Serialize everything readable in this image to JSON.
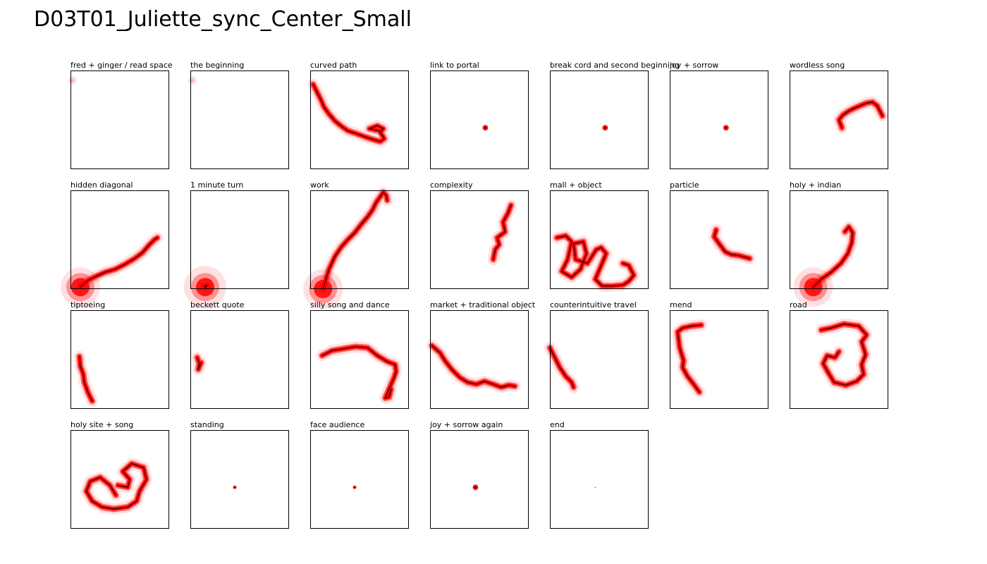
{
  "title": "D03T01_Juliette_sync_Center_Small",
  "colors": {
    "blob": "#ff0000",
    "path": "#000000",
    "frame": "#000000"
  },
  "chart_data": {
    "type": "small-multiples-trajectory",
    "panels": [
      {
        "label": "fred + ginger / read space",
        "x_range": [
          0,
          1
        ],
        "y_range": [
          0,
          1
        ],
        "points": [
          [
            0.02,
            0.9
          ]
        ],
        "blob": "faint"
      },
      {
        "label": "the beginning",
        "x_range": [
          0,
          1
        ],
        "y_range": [
          0,
          1
        ],
        "points": [
          [
            0.02,
            0.9
          ]
        ],
        "blob": "faint"
      },
      {
        "label": "curved path",
        "x_range": [
          0,
          1
        ],
        "y_range": [
          0,
          1
        ],
        "points": [
          [
            0.03,
            0.86
          ],
          [
            0.07,
            0.78
          ],
          [
            0.11,
            0.7
          ],
          [
            0.14,
            0.63
          ],
          [
            0.19,
            0.56
          ],
          [
            0.25,
            0.49
          ],
          [
            0.31,
            0.44
          ],
          [
            0.38,
            0.39
          ],
          [
            0.47,
            0.36
          ],
          [
            0.55,
            0.33
          ],
          [
            0.64,
            0.3
          ],
          [
            0.71,
            0.28
          ],
          [
            0.75,
            0.31
          ],
          [
            0.7,
            0.39
          ],
          [
            0.6,
            0.41
          ],
          [
            0.68,
            0.44
          ],
          [
            0.74,
            0.41
          ],
          [
            0.71,
            0.37
          ]
        ],
        "blob": "path"
      },
      {
        "label": "link to portal",
        "x_range": [
          0,
          1
        ],
        "y_range": [
          0,
          1
        ],
        "points": [
          [
            0.56,
            0.42
          ]
        ],
        "blob": "dot"
      },
      {
        "label": "break cord and second beginning",
        "x_range": [
          0,
          1
        ],
        "y_range": [
          0,
          1
        ],
        "points": [
          [
            0.56,
            0.42
          ]
        ],
        "blob": "dot"
      },
      {
        "label": "joy + sorrow",
        "x_range": [
          0,
          1
        ],
        "y_range": [
          0,
          1
        ],
        "points": [
          [
            0.57,
            0.42
          ]
        ],
        "blob": "dot"
      },
      {
        "label": "wordless song",
        "x_range": [
          0,
          1
        ],
        "y_range": [
          0,
          1
        ],
        "points": [
          [
            0.53,
            0.42
          ],
          [
            0.5,
            0.5
          ],
          [
            0.54,
            0.55
          ],
          [
            0.6,
            0.59
          ],
          [
            0.66,
            0.62
          ],
          [
            0.73,
            0.65
          ],
          [
            0.78,
            0.67
          ],
          [
            0.84,
            0.68
          ],
          [
            0.89,
            0.64
          ],
          [
            0.92,
            0.58
          ],
          [
            0.94,
            0.54
          ]
        ],
        "blob": "path"
      },
      {
        "label": "hidden diagonal",
        "x_range": [
          0,
          1
        ],
        "y_range": [
          0,
          1
        ],
        "points": [
          [
            0.1,
            0.02
          ],
          [
            0.18,
            0.09
          ],
          [
            0.26,
            0.13
          ],
          [
            0.35,
            0.17
          ],
          [
            0.45,
            0.2
          ],
          [
            0.55,
            0.25
          ],
          [
            0.65,
            0.31
          ],
          [
            0.73,
            0.37
          ],
          [
            0.79,
            0.44
          ],
          [
            0.85,
            0.5
          ],
          [
            0.88,
            0.52
          ]
        ],
        "blob": "path-big-start"
      },
      {
        "label": "1 minute turn",
        "x_range": [
          0,
          1
        ],
        "y_range": [
          0,
          1
        ],
        "points": [
          [
            0.15,
            0.02
          ],
          [
            0.17,
            0.04
          ],
          [
            0.14,
            0.03
          ],
          [
            0.16,
            0.01
          ]
        ],
        "blob": "big-start"
      },
      {
        "label": "work",
        "x_range": [
          0,
          1
        ],
        "y_range": [
          0,
          1
        ],
        "points": [
          [
            0.13,
            0.0
          ],
          [
            0.16,
            0.1
          ],
          [
            0.19,
            0.2
          ],
          [
            0.25,
            0.33
          ],
          [
            0.31,
            0.42
          ],
          [
            0.38,
            0.5
          ],
          [
            0.45,
            0.57
          ],
          [
            0.52,
            0.66
          ],
          [
            0.58,
            0.73
          ],
          [
            0.63,
            0.8
          ],
          [
            0.67,
            0.88
          ],
          [
            0.72,
            0.95
          ],
          [
            0.74,
            0.98
          ],
          [
            0.77,
            0.95
          ],
          [
            0.78,
            0.9
          ]
        ],
        "blob": "path-big-start"
      },
      {
        "label": "complexity",
        "x_range": [
          0,
          1
        ],
        "y_range": [
          0,
          1
        ],
        "points": [
          [
            0.64,
            0.3
          ],
          [
            0.66,
            0.4
          ],
          [
            0.7,
            0.45
          ],
          [
            0.68,
            0.52
          ],
          [
            0.76,
            0.58
          ],
          [
            0.74,
            0.68
          ],
          [
            0.79,
            0.77
          ],
          [
            0.82,
            0.85
          ]
        ],
        "blob": "path"
      },
      {
        "label": "mall + object",
        "x_range": [
          0,
          1
        ],
        "y_range": [
          0,
          1
        ],
        "points": [
          [
            0.07,
            0.52
          ],
          [
            0.16,
            0.54
          ],
          [
            0.22,
            0.48
          ],
          [
            0.18,
            0.3
          ],
          [
            0.12,
            0.18
          ],
          [
            0.22,
            0.12
          ],
          [
            0.31,
            0.2
          ],
          [
            0.37,
            0.36
          ],
          [
            0.34,
            0.48
          ],
          [
            0.24,
            0.46
          ],
          [
            0.26,
            0.3
          ],
          [
            0.38,
            0.26
          ],
          [
            0.47,
            0.4
          ],
          [
            0.52,
            0.42
          ],
          [
            0.57,
            0.36
          ],
          [
            0.52,
            0.24
          ],
          [
            0.46,
            0.1
          ],
          [
            0.53,
            0.03
          ],
          [
            0.63,
            0.03
          ],
          [
            0.74,
            0.04
          ],
          [
            0.8,
            0.08
          ],
          [
            0.85,
            0.14
          ],
          [
            0.8,
            0.24
          ],
          [
            0.74,
            0.26
          ]
        ],
        "blob": "path"
      },
      {
        "label": "particle",
        "x_range": [
          0,
          1
        ],
        "y_range": [
          0,
          1
        ],
        "points": [
          [
            0.47,
            0.6
          ],
          [
            0.45,
            0.53
          ],
          [
            0.5,
            0.46
          ],
          [
            0.56,
            0.38
          ],
          [
            0.62,
            0.35
          ],
          [
            0.7,
            0.34
          ],
          [
            0.77,
            0.32
          ],
          [
            0.81,
            0.31
          ]
        ],
        "blob": "path"
      },
      {
        "label": "holy + indian",
        "x_range": [
          0,
          1
        ],
        "y_range": [
          0,
          1
        ],
        "points": [
          [
            0.24,
            0.02
          ],
          [
            0.32,
            0.1
          ],
          [
            0.42,
            0.17
          ],
          [
            0.52,
            0.26
          ],
          [
            0.59,
            0.36
          ],
          [
            0.63,
            0.47
          ],
          [
            0.64,
            0.57
          ],
          [
            0.6,
            0.63
          ],
          [
            0.56,
            0.58
          ]
        ],
        "blob": "path-big-start"
      },
      {
        "label": "tiptoeing",
        "x_range": [
          0,
          1
        ],
        "y_range": [
          0,
          1
        ],
        "points": [
          [
            0.09,
            0.53
          ],
          [
            0.1,
            0.43
          ],
          [
            0.13,
            0.35
          ],
          [
            0.14,
            0.27
          ],
          [
            0.18,
            0.16
          ],
          [
            0.22,
            0.08
          ]
        ],
        "blob": "path"
      },
      {
        "label": "beckett quote",
        "x_range": [
          0,
          1
        ],
        "y_range": [
          0,
          1
        ],
        "points": [
          [
            0.07,
            0.52
          ],
          [
            0.09,
            0.46
          ],
          [
            0.08,
            0.4
          ],
          [
            0.11,
            0.47
          ]
        ],
        "blob": "path"
      },
      {
        "label": "silly song and dance",
        "x_range": [
          0,
          1
        ],
        "y_range": [
          0,
          1
        ],
        "points": [
          [
            0.12,
            0.54
          ],
          [
            0.22,
            0.59
          ],
          [
            0.34,
            0.61
          ],
          [
            0.46,
            0.63
          ],
          [
            0.58,
            0.62
          ],
          [
            0.68,
            0.54
          ],
          [
            0.78,
            0.48
          ],
          [
            0.86,
            0.45
          ],
          [
            0.87,
            0.38
          ],
          [
            0.85,
            0.32
          ],
          [
            0.76,
            0.11
          ],
          [
            0.8,
            0.12
          ],
          [
            0.82,
            0.2
          ]
        ],
        "blob": "path"
      },
      {
        "label": "market + traditional object",
        "x_range": [
          0,
          1
        ],
        "y_range": [
          0,
          1
        ],
        "points": [
          [
            0.02,
            0.64
          ],
          [
            0.1,
            0.57
          ],
          [
            0.15,
            0.49
          ],
          [
            0.22,
            0.4
          ],
          [
            0.3,
            0.32
          ],
          [
            0.38,
            0.27
          ],
          [
            0.47,
            0.25
          ],
          [
            0.55,
            0.28
          ],
          [
            0.64,
            0.25
          ],
          [
            0.72,
            0.22
          ],
          [
            0.8,
            0.24
          ],
          [
            0.86,
            0.23
          ]
        ],
        "blob": "path"
      },
      {
        "label": "counterintuitive travel",
        "x_range": [
          0,
          1
        ],
        "y_range": [
          0,
          1
        ],
        "points": [
          [
            0.0,
            0.62
          ],
          [
            0.05,
            0.52
          ],
          [
            0.1,
            0.42
          ],
          [
            0.16,
            0.33
          ],
          [
            0.22,
            0.27
          ],
          [
            0.24,
            0.22
          ]
        ],
        "blob": "path"
      },
      {
        "label": "mend",
        "x_range": [
          0,
          1
        ],
        "y_range": [
          0,
          1
        ],
        "points": [
          [
            0.32,
            0.85
          ],
          [
            0.22,
            0.84
          ],
          [
            0.13,
            0.82
          ],
          [
            0.08,
            0.78
          ],
          [
            0.1,
            0.62
          ],
          [
            0.14,
            0.49
          ],
          [
            0.13,
            0.42
          ],
          [
            0.18,
            0.33
          ],
          [
            0.25,
            0.24
          ],
          [
            0.3,
            0.17
          ]
        ],
        "blob": "path"
      },
      {
        "label": "road",
        "x_range": [
          0,
          1
        ],
        "y_range": [
          0,
          1
        ],
        "points": [
          [
            0.32,
            0.8
          ],
          [
            0.42,
            0.82
          ],
          [
            0.55,
            0.86
          ],
          [
            0.7,
            0.84
          ],
          [
            0.78,
            0.75
          ],
          [
            0.73,
            0.68
          ],
          [
            0.77,
            0.55
          ],
          [
            0.73,
            0.45
          ],
          [
            0.75,
            0.35
          ],
          [
            0.68,
            0.28
          ],
          [
            0.57,
            0.24
          ],
          [
            0.45,
            0.27
          ],
          [
            0.39,
            0.37
          ],
          [
            0.34,
            0.46
          ],
          [
            0.38,
            0.54
          ],
          [
            0.46,
            0.52
          ],
          [
            0.5,
            0.58
          ]
        ],
        "blob": "path"
      },
      {
        "label": "holy site + song",
        "x_range": [
          0,
          1
        ],
        "y_range": [
          0,
          1
        ],
        "points": [
          [
            0.46,
            0.34
          ],
          [
            0.4,
            0.44
          ],
          [
            0.3,
            0.52
          ],
          [
            0.2,
            0.48
          ],
          [
            0.16,
            0.38
          ],
          [
            0.22,
            0.28
          ],
          [
            0.32,
            0.22
          ],
          [
            0.44,
            0.2
          ],
          [
            0.58,
            0.22
          ],
          [
            0.67,
            0.28
          ],
          [
            0.7,
            0.38
          ],
          [
            0.77,
            0.5
          ],
          [
            0.74,
            0.62
          ],
          [
            0.62,
            0.66
          ],
          [
            0.53,
            0.58
          ],
          [
            0.6,
            0.5
          ],
          [
            0.58,
            0.42
          ],
          [
            0.48,
            0.44
          ]
        ],
        "blob": "path"
      },
      {
        "label": "standing",
        "x_range": [
          0,
          1
        ],
        "y_range": [
          0,
          1
        ],
        "points": [
          [
            0.45,
            0.42
          ]
        ],
        "blob": "small-dot"
      },
      {
        "label": "face audience",
        "x_range": [
          0,
          1
        ],
        "y_range": [
          0,
          1
        ],
        "points": [
          [
            0.45,
            0.42
          ]
        ],
        "blob": "small-dot"
      },
      {
        "label": "joy + sorrow again",
        "x_range": [
          0,
          1
        ],
        "y_range": [
          0,
          1
        ],
        "points": [
          [
            0.46,
            0.42
          ]
        ],
        "blob": "dot"
      },
      {
        "label": "end",
        "x_range": [
          0,
          1
        ],
        "y_range": [
          0,
          1
        ],
        "points": [
          [
            0.46,
            0.42
          ]
        ],
        "blob": "none"
      }
    ]
  }
}
